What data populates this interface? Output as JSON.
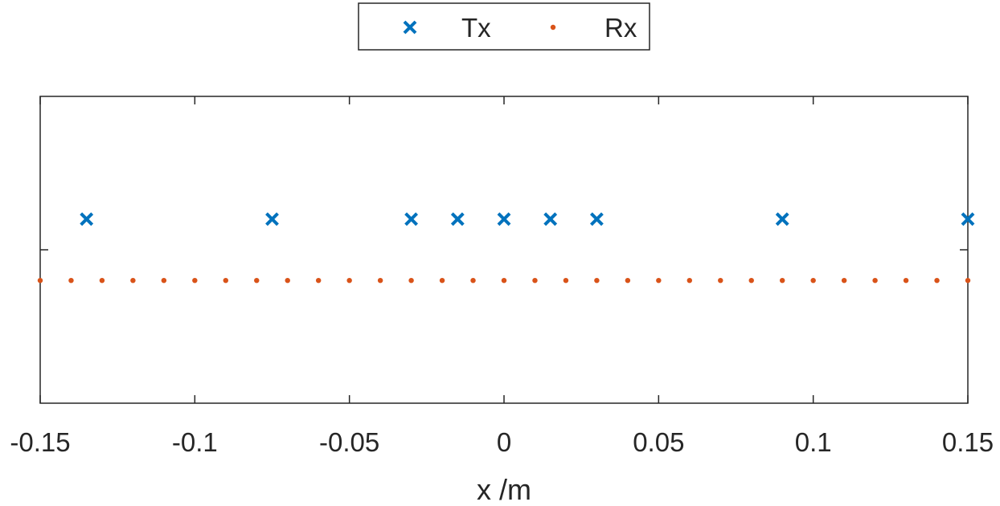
{
  "chart_data": {
    "type": "scatter",
    "xlabel": "x /m",
    "ylabel": "",
    "xlim": [
      -0.15,
      0.15
    ],
    "ylim": [
      -1,
      1
    ],
    "grid": false,
    "legend_position": "top-center-outside",
    "x_ticks": [
      -0.15,
      -0.1,
      -0.05,
      0,
      0.05,
      0.1,
      0.15
    ],
    "x_tick_labels": [
      "-0.15",
      "-0.1",
      "-0.05",
      "0",
      "0.05",
      "0.1",
      "0.15"
    ],
    "series": [
      {
        "name": "Tx",
        "marker": "x",
        "color": "#0072BD",
        "x": [
          -0.135,
          -0.075,
          -0.03,
          -0.015,
          0,
          0.015,
          0.03,
          0.09,
          0.15
        ],
        "y": [
          0.2,
          0.2,
          0.2,
          0.2,
          0.2,
          0.2,
          0.2,
          0.2,
          0.2
        ]
      },
      {
        "name": "Rx",
        "marker": "dot",
        "color": "#D95319",
        "x": [
          -0.15,
          -0.14,
          -0.13,
          -0.12,
          -0.11,
          -0.1,
          -0.09,
          -0.08,
          -0.07,
          -0.06,
          -0.05,
          -0.04,
          -0.03,
          -0.02,
          -0.01,
          0,
          0.01,
          0.02,
          0.03,
          0.04,
          0.05,
          0.06,
          0.07,
          0.08,
          0.09,
          0.1,
          0.11,
          0.12,
          0.13,
          0.14,
          0.15
        ],
        "y": [
          -0.2,
          -0.2,
          -0.2,
          -0.2,
          -0.2,
          -0.2,
          -0.2,
          -0.2,
          -0.2,
          -0.2,
          -0.2,
          -0.2,
          -0.2,
          -0.2,
          -0.2,
          -0.2,
          -0.2,
          -0.2,
          -0.2,
          -0.2,
          -0.2,
          -0.2,
          -0.2,
          -0.2,
          -0.2,
          -0.2,
          -0.2,
          -0.2,
          -0.2,
          -0.2,
          -0.2
        ]
      }
    ]
  }
}
